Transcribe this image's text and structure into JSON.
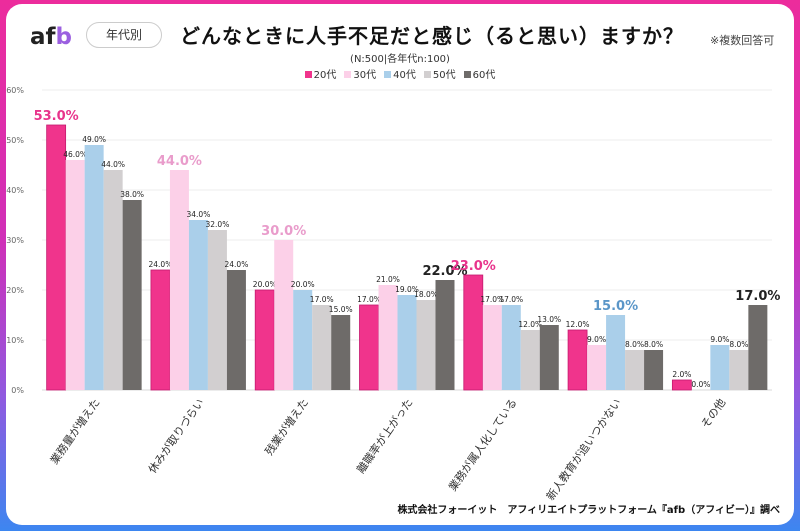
{
  "header": {
    "logo": {
      "a": "af",
      "b": "b"
    },
    "filter_pill": "年代別",
    "title": "どんなときに人手不足だと感じ（ると思い）ますか？",
    "note": "※複数回答可",
    "subtitle": "(N:500|各年代n:100)"
  },
  "footer": "株式会社フォーイット　アフィリエイトプラットフォーム『afb（アフィビー）』調べ",
  "colors": {
    "20代": "#f0348c",
    "30代": "#fcd0e8",
    "40代": "#aacfea",
    "50代": "#d2cfd0",
    "60代": "#6e6b69"
  },
  "chart_data": {
    "type": "bar",
    "title": "どんなときに人手不足だと感じ（ると思い）ますか？",
    "subtitle": "(N:500|各年代n:100)",
    "xlabel": "",
    "ylabel": "",
    "ylim": [
      0,
      60
    ],
    "yticks": [
      "0%",
      "10%",
      "20%",
      "30%",
      "40%",
      "50%",
      "60%"
    ],
    "grid": true,
    "legend_position": "top-center",
    "categories": [
      "業務量が増えた",
      "休みが取りづらい",
      "残業が増えた",
      "離職率が上がった",
      "業務が属人化している",
      "新人教育が追いつかない",
      "その他"
    ],
    "series": [
      {
        "name": "20代",
        "values": [
          53.0,
          24.0,
          20.0,
          17.0,
          23.0,
          12.0,
          2.0
        ]
      },
      {
        "name": "30代",
        "values": [
          46.0,
          44.0,
          30.0,
          21.0,
          17.0,
          9.0,
          0.0
        ]
      },
      {
        "name": "40代",
        "values": [
          49.0,
          34.0,
          20.0,
          19.0,
          17.0,
          15.0,
          9.0
        ]
      },
      {
        "name": "50代",
        "values": [
          44.0,
          32.0,
          17.0,
          18.0,
          12.0,
          8.0,
          8.0
        ]
      },
      {
        "name": "60代",
        "values": [
          38.0,
          24.0,
          15.0,
          22.0,
          13.0,
          8.0,
          17.0
        ]
      }
    ],
    "highlights": [
      {
        "category": "業務量が増えた",
        "series": "20代",
        "label": "53.0%",
        "color": "#e8348c"
      },
      {
        "category": "休みが取りづらい",
        "series": "30代",
        "label": "44.0%",
        "color": "#e99ccb"
      },
      {
        "category": "残業が増えた",
        "series": "30代",
        "label": "30.0%",
        "color": "#e99ccb"
      },
      {
        "category": "離職率が上がった",
        "series": "60代",
        "label": "22.0%",
        "color": "#222222"
      },
      {
        "category": "業務が属人化している",
        "series": "20代",
        "label": "23.0%",
        "color": "#e8348c"
      },
      {
        "category": "新人教育が追いつかない",
        "series": "40代",
        "label": "15.0%",
        "color": "#5b96c8"
      },
      {
        "category": "その他",
        "series": "60代",
        "label": "17.0%",
        "color": "#222222"
      }
    ]
  }
}
